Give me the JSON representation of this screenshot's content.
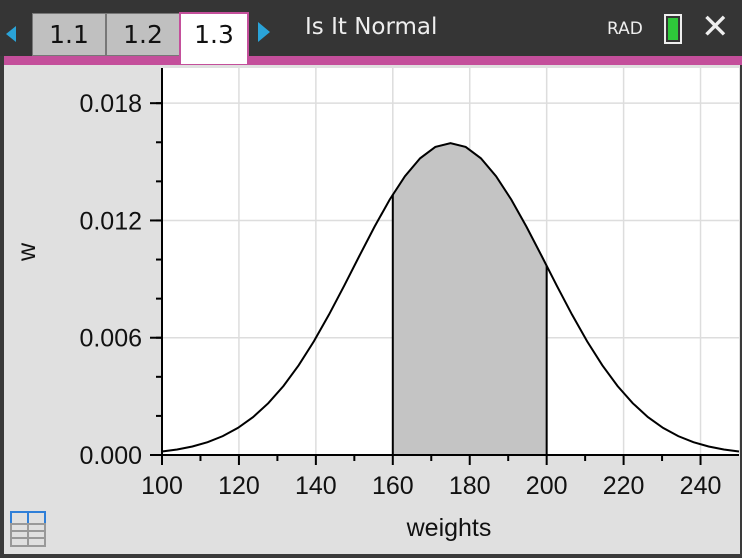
{
  "header": {
    "tabs": [
      {
        "label": "1.1",
        "active": false
      },
      {
        "label": "1.2",
        "active": false
      },
      {
        "label": "1.3",
        "active": true
      }
    ],
    "document_title": "Is It Normal",
    "angle_mode": "RAD",
    "battery_icon": "battery-full-icon",
    "close_icon": "close-icon",
    "accent_color": "#c44f9b"
  },
  "chart_data": {
    "type": "area",
    "title": "",
    "xlabel": "weights",
    "ylabel": "w",
    "xlim": [
      100,
      250
    ],
    "ylim": [
      0,
      0.0198
    ],
    "x_ticks": [
      "100",
      "120",
      "140",
      "160",
      "180",
      "200",
      "220",
      "240"
    ],
    "y_ticks": [
      "0.000",
      "0.006",
      "0.012",
      "0.018"
    ],
    "grid": true,
    "curve": {
      "function": "normal pdf",
      "mean": 175,
      "sd": 25
    },
    "shaded_region": {
      "from": 160,
      "to": 200
    },
    "shade_color": "#c4c4c4",
    "line_color": "#000000"
  },
  "footer": {
    "table_icon": "table-icon"
  }
}
